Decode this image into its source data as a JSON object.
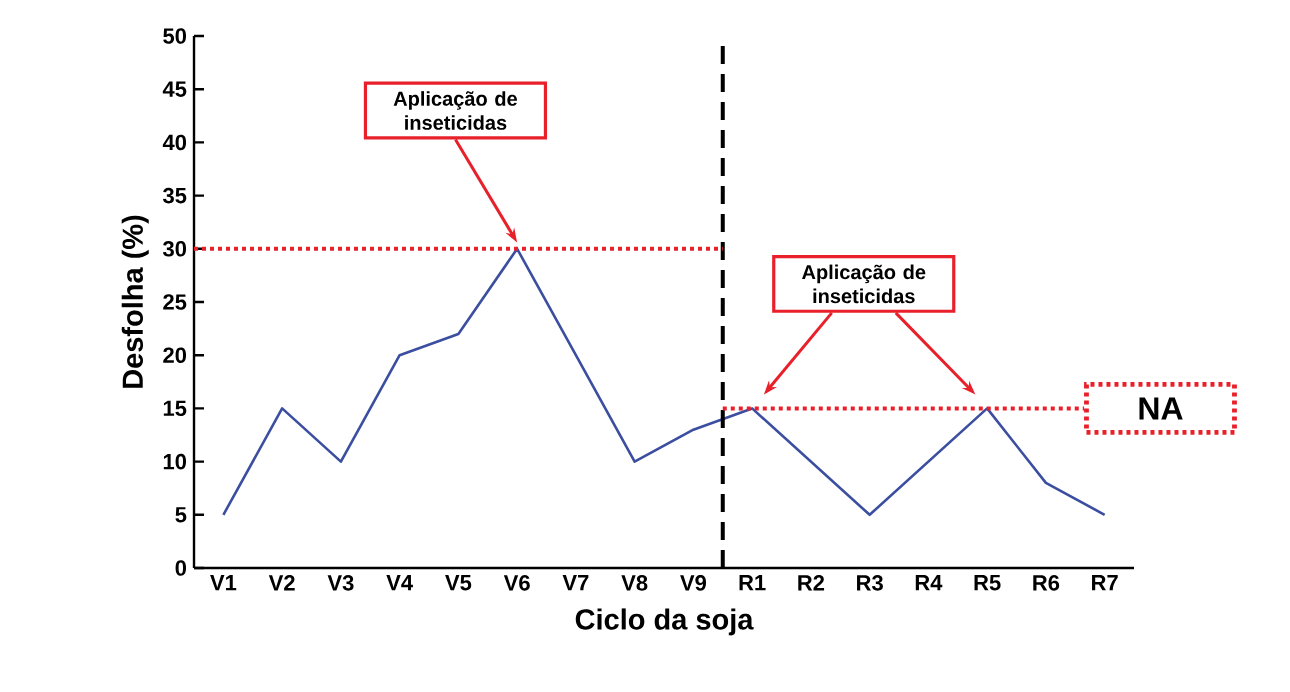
{
  "chart_data": {
    "type": "line",
    "xlabel": "Ciclo da soja",
    "ylabel": "Desfolha (%)",
    "categories": [
      "V1",
      "V2",
      "V3",
      "V4",
      "V5",
      "V6",
      "V7",
      "V8",
      "V9",
      "R1",
      "R2",
      "R3",
      "R4",
      "R5",
      "R6",
      "R7"
    ],
    "values": [
      5,
      15,
      10,
      20,
      22,
      30,
      20,
      10,
      13,
      15,
      10,
      5,
      10,
      15,
      8,
      5
    ],
    "color": "#3b4ea0",
    "ylim": [
      0,
      50
    ],
    "yticks": [
      0,
      5,
      10,
      15,
      20,
      25,
      30,
      35,
      40,
      45,
      50
    ],
    "grid": false,
    "marker": "none",
    "line_style": "solid",
    "ref_lines": [
      {
        "axis": "y",
        "value": 30,
        "color": "#e8202a",
        "line_style": "dotted"
      },
      {
        "axis": "y",
        "value": 15,
        "color": "#e8202a",
        "line_style": "dotted",
        "label": "NA"
      }
    ],
    "annotations": [
      {
        "text": "Aplicação de inseticidas",
        "x": "V6",
        "y": 30
      },
      "Aplicação de inseticidas"
    ]
  }
}
